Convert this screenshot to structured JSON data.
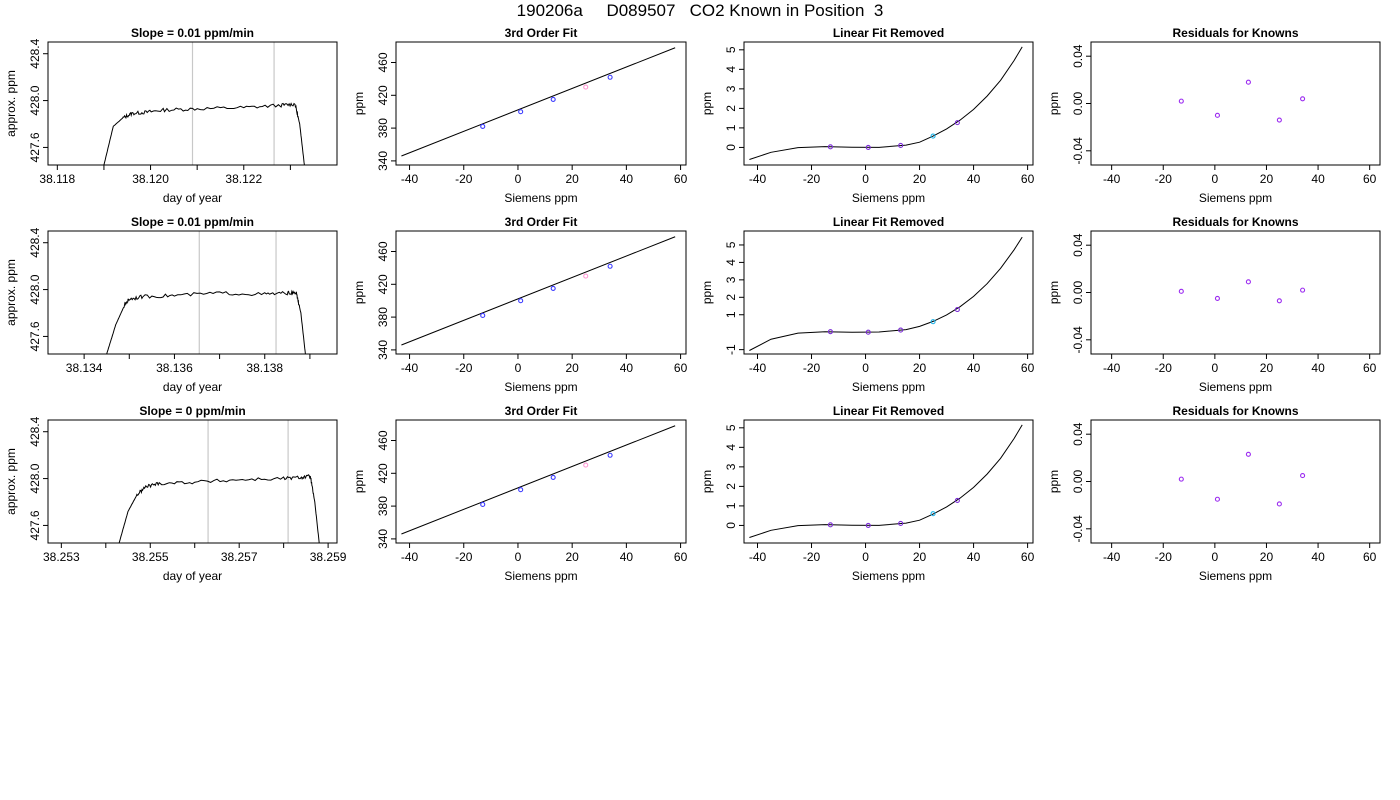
{
  "title": "190206a     D089507   CO2 Known in Position  3",
  "chart_data": [
    {
      "type": "line",
      "row": 1,
      "title": "Slope =  0.01  ppm/min",
      "xlabel": "day of year",
      "ylabel": "approx. ppm",
      "xlim": [
        38.1178,
        38.124
      ],
      "ylim": [
        427.45,
        428.5
      ],
      "xticks": [
        "38.118",
        "38.120",
        "38.122"
      ],
      "xtick_values": [
        38.118,
        38.12,
        38.122
      ],
      "xminor": [
        38.119,
        38.121,
        38.123
      ],
      "yticks": [
        "427.6",
        "428.0",
        "428.4"
      ],
      "ytick_values": [
        427.6,
        428.0,
        428.4
      ],
      "vlines": [
        38.1209,
        38.12265
      ],
      "series": [
        {
          "x": [
            38.119,
            38.1192,
            38.1194,
            38.1196,
            38.1199,
            38.1203,
            38.121,
            38.122,
            38.1228,
            38.1231,
            38.1232,
            38.1233
          ],
          "y": [
            427.45,
            427.78,
            427.85,
            427.89,
            427.9,
            427.92,
            427.93,
            427.94,
            427.96,
            427.97,
            427.8,
            427.45
          ]
        }
      ]
    },
    {
      "type": "scatter",
      "row": 1,
      "title": "3rd Order Fit",
      "xlabel": "Siemens ppm",
      "ylabel": "ppm",
      "xlim": [
        -45,
        62
      ],
      "ylim": [
        335,
        485
      ],
      "xticks": [
        "-40",
        "-20",
        "0",
        "20",
        "40",
        "60"
      ],
      "xtick_values": [
        -40,
        -20,
        0,
        20,
        40,
        60
      ],
      "yticks": [
        "340",
        "380",
        "420",
        "460"
      ],
      "ytick_values": [
        340,
        380,
        420,
        460
      ],
      "fit_line": {
        "x": [
          -43,
          58
        ],
        "y": [
          346,
          478
        ]
      },
      "points": [
        {
          "x": -13,
          "y": 382,
          "color": "#3b3bff"
        },
        {
          "x": 1,
          "y": 400,
          "color": "#3b3bff"
        },
        {
          "x": 13,
          "y": 415,
          "color": "#3b3bff"
        },
        {
          "x": 25,
          "y": 430,
          "color": "#ff9ad5"
        },
        {
          "x": 34,
          "y": 442,
          "color": "#3b3bff"
        }
      ]
    },
    {
      "type": "scatter",
      "row": 1,
      "title": "Linear Fit Removed",
      "xlabel": "Siemens ppm",
      "ylabel": "ppm",
      "xlim": [
        -45,
        62
      ],
      "ylim": [
        -0.9,
        5.4
      ],
      "xticks": [
        "-40",
        "-20",
        "0",
        "20",
        "40",
        "60"
      ],
      "xtick_values": [
        -40,
        -20,
        0,
        20,
        40,
        60
      ],
      "yticks": [
        "0",
        "1",
        "2",
        "3",
        "4",
        "5"
      ],
      "ytick_values": [
        0,
        1,
        2,
        3,
        4,
        5
      ],
      "fit_curve": {
        "x": [
          -43,
          -35,
          -25,
          -15,
          -5,
          5,
          15,
          20,
          25,
          30,
          35,
          40,
          45,
          50,
          55,
          58
        ],
        "y": [
          -0.62,
          -0.25,
          -0.01,
          0.04,
          0.01,
          0.0,
          0.12,
          0.27,
          0.58,
          0.95,
          1.4,
          1.95,
          2.63,
          3.44,
          4.45,
          5.15
        ]
      },
      "points": [
        {
          "x": -13,
          "y": 0.03,
          "color": "#7a2bd6"
        },
        {
          "x": 1,
          "y": 0.0,
          "color": "#7a2bd6"
        },
        {
          "x": 13,
          "y": 0.1,
          "color": "#7a2bd6"
        },
        {
          "x": 25,
          "y": 0.58,
          "color": "#1eb3e8"
        },
        {
          "x": 34,
          "y": 1.27,
          "color": "#7a2bd6"
        }
      ]
    },
    {
      "type": "scatter",
      "row": 1,
      "title": "Residuals for Knowns",
      "xlabel": "Siemens ppm",
      "ylabel": "ppm",
      "xlim": [
        -48,
        64
      ],
      "ylim": [
        -0.052,
        0.052
      ],
      "xticks": [
        "-40",
        "-20",
        "0",
        "20",
        "40",
        "60"
      ],
      "xtick_values": [
        -40,
        -20,
        0,
        20,
        40,
        60
      ],
      "yticks": [
        "-0.04",
        "0.00",
        "0.04"
      ],
      "ytick_values": [
        -0.04,
        0.0,
        0.04
      ],
      "points": [
        {
          "x": -13,
          "y": 0.002,
          "color": "#9b2bf0"
        },
        {
          "x": 1,
          "y": -0.01,
          "color": "#9b2bf0"
        },
        {
          "x": 13,
          "y": 0.018,
          "color": "#9b2bf0"
        },
        {
          "x": 25,
          "y": -0.014,
          "color": "#9b2bf0"
        },
        {
          "x": 34,
          "y": 0.004,
          "color": "#9b2bf0"
        }
      ]
    },
    {
      "type": "line",
      "row": 2,
      "title": "Slope =  0.01  ppm/min",
      "xlabel": "day of year",
      "ylabel": "approx. ppm",
      "xlim": [
        38.1332,
        38.1396
      ],
      "ylim": [
        427.45,
        428.5
      ],
      "xticks": [
        "38.134",
        "38.136",
        "38.138"
      ],
      "xtick_values": [
        38.134,
        38.136,
        38.138
      ],
      "xminor": [
        38.135,
        38.137,
        38.139
      ],
      "yticks": [
        "427.6",
        "428.0",
        "428.4"
      ],
      "ytick_values": [
        427.6,
        428.0,
        428.4
      ],
      "vlines": [
        38.13655,
        38.13825
      ],
      "series": [
        {
          "x": [
            38.1345,
            38.1347,
            38.1349,
            38.135,
            38.1353,
            38.136,
            38.137,
            38.138,
            38.1385,
            38.1387,
            38.1388,
            38.1389
          ],
          "y": [
            427.45,
            427.7,
            427.87,
            427.92,
            427.94,
            427.95,
            427.97,
            427.96,
            427.97,
            427.97,
            427.8,
            427.45
          ]
        }
      ]
    },
    {
      "type": "scatter",
      "row": 2,
      "title": "3rd Order Fit",
      "xlabel": "Siemens ppm",
      "ylabel": "ppm",
      "xlim": [
        -45,
        62
      ],
      "ylim": [
        335,
        485
      ],
      "xticks": [
        "-40",
        "-20",
        "0",
        "20",
        "40",
        "60"
      ],
      "xtick_values": [
        -40,
        -20,
        0,
        20,
        40,
        60
      ],
      "yticks": [
        "340",
        "380",
        "420",
        "460"
      ],
      "ytick_values": [
        340,
        380,
        420,
        460
      ],
      "fit_line": {
        "x": [
          -43,
          58
        ],
        "y": [
          346,
          478
        ]
      },
      "points": [
        {
          "x": -13,
          "y": 382,
          "color": "#3b3bff"
        },
        {
          "x": 1,
          "y": 400,
          "color": "#3b3bff"
        },
        {
          "x": 13,
          "y": 415,
          "color": "#3b3bff"
        },
        {
          "x": 25,
          "y": 430,
          "color": "#ff9ad5"
        },
        {
          "x": 34,
          "y": 442,
          "color": "#3b3bff"
        }
      ]
    },
    {
      "type": "scatter",
      "row": 2,
      "title": "Linear Fit Removed",
      "xlabel": "Siemens ppm",
      "ylabel": "ppm",
      "xlim": [
        -45,
        62
      ],
      "ylim": [
        -1.25,
        5.8
      ],
      "xticks": [
        "-40",
        "-20",
        "0",
        "20",
        "40",
        "60"
      ],
      "xtick_values": [
        -40,
        -20,
        0,
        20,
        40,
        60
      ],
      "yticks": [
        "-1",
        "1",
        "2",
        "3",
        "4",
        "5"
      ],
      "ytick_values": [
        -1,
        1,
        2,
        3,
        4,
        5
      ],
      "fit_curve": {
        "x": [
          -43,
          -35,
          -25,
          -15,
          -5,
          5,
          15,
          20,
          25,
          30,
          35,
          40,
          45,
          50,
          55,
          58
        ],
        "y": [
          -1.05,
          -0.4,
          -0.05,
          0.02,
          0.0,
          0.01,
          0.15,
          0.33,
          0.62,
          0.99,
          1.46,
          2.05,
          2.78,
          3.66,
          4.72,
          5.45
        ]
      },
      "points": [
        {
          "x": -13,
          "y": 0.03,
          "color": "#7a2bd6"
        },
        {
          "x": 1,
          "y": 0.0,
          "color": "#7a2bd6"
        },
        {
          "x": 13,
          "y": 0.12,
          "color": "#7a2bd6"
        },
        {
          "x": 25,
          "y": 0.6,
          "color": "#1eb3e8"
        },
        {
          "x": 34,
          "y": 1.3,
          "color": "#7a2bd6"
        }
      ]
    },
    {
      "type": "scatter",
      "row": 2,
      "title": "Residuals for Knowns",
      "xlabel": "Siemens ppm",
      "ylabel": "ppm",
      "xlim": [
        -48,
        64
      ],
      "ylim": [
        -0.052,
        0.052
      ],
      "xticks": [
        "-40",
        "-20",
        "0",
        "20",
        "40",
        "60"
      ],
      "xtick_values": [
        -40,
        -20,
        0,
        20,
        40,
        60
      ],
      "yticks": [
        "-0.04",
        "0.00",
        "0.04"
      ],
      "ytick_values": [
        -0.04,
        0.0,
        0.04
      ],
      "points": [
        {
          "x": -13,
          "y": 0.001,
          "color": "#9b2bf0"
        },
        {
          "x": 1,
          "y": -0.005,
          "color": "#9b2bf0"
        },
        {
          "x": 13,
          "y": 0.009,
          "color": "#9b2bf0"
        },
        {
          "x": 25,
          "y": -0.007,
          "color": "#9b2bf0"
        },
        {
          "x": 34,
          "y": 0.002,
          "color": "#9b2bf0"
        }
      ]
    },
    {
      "type": "line",
      "row": 3,
      "title": "Slope =  0  ppm/min",
      "xlabel": "day of year",
      "ylabel": "approx. ppm",
      "xlim": [
        38.2527,
        38.2592
      ],
      "ylim": [
        427.45,
        428.5
      ],
      "xticks": [
        "38.253",
        "38.255",
        "38.257",
        "38.259"
      ],
      "xtick_values": [
        38.253,
        38.255,
        38.257,
        38.259
      ],
      "xminor": [
        38.254,
        38.256,
        38.258
      ],
      "yticks": [
        "427.6",
        "428.0",
        "428.4"
      ],
      "ytick_values": [
        427.6,
        428.0,
        428.4
      ],
      "vlines": [
        38.2563,
        38.2581
      ],
      "series": [
        {
          "x": [
            38.2543,
            38.2545,
            38.2547,
            38.2549,
            38.2552,
            38.256,
            38.257,
            38.258,
            38.2584,
            38.2586,
            38.2587,
            38.2588
          ],
          "y": [
            427.45,
            427.72,
            427.86,
            427.93,
            427.96,
            427.97,
            427.99,
            428.0,
            428.01,
            428.02,
            427.8,
            427.45
          ]
        }
      ]
    },
    {
      "type": "scatter",
      "row": 3,
      "title": "3rd Order Fit",
      "xlabel": "Siemens ppm",
      "ylabel": "ppm",
      "xlim": [
        -45,
        62
      ],
      "ylim": [
        335,
        485
      ],
      "xticks": [
        "-40",
        "-20",
        "0",
        "20",
        "40",
        "60"
      ],
      "xtick_values": [
        -40,
        -20,
        0,
        20,
        40,
        60
      ],
      "yticks": [
        "340",
        "380",
        "420",
        "460"
      ],
      "ytick_values": [
        340,
        380,
        420,
        460
      ],
      "fit_line": {
        "x": [
          -43,
          58
        ],
        "y": [
          346,
          478
        ]
      },
      "points": [
        {
          "x": -13,
          "y": 382,
          "color": "#3b3bff"
        },
        {
          "x": 1,
          "y": 400,
          "color": "#3b3bff"
        },
        {
          "x": 13,
          "y": 415,
          "color": "#3b3bff"
        },
        {
          "x": 25,
          "y": 430,
          "color": "#ff9ad5"
        },
        {
          "x": 34,
          "y": 442,
          "color": "#3b3bff"
        }
      ]
    },
    {
      "type": "scatter",
      "row": 3,
      "title": "Linear Fit Removed",
      "xlabel": "Siemens ppm",
      "ylabel": "ppm",
      "xlim": [
        -45,
        62
      ],
      "ylim": [
        -0.9,
        5.4
      ],
      "xticks": [
        "-40",
        "-20",
        "0",
        "20",
        "40",
        "60"
      ],
      "xtick_values": [
        -40,
        -20,
        0,
        20,
        40,
        60
      ],
      "yticks": [
        "0",
        "1",
        "2",
        "3",
        "4",
        "5"
      ],
      "ytick_values": [
        0,
        1,
        2,
        3,
        4,
        5
      ],
      "fit_curve": {
        "x": [
          -43,
          -35,
          -25,
          -15,
          -5,
          5,
          15,
          20,
          25,
          30,
          35,
          40,
          45,
          50,
          55,
          58
        ],
        "y": [
          -0.62,
          -0.25,
          -0.01,
          0.04,
          0.01,
          0.0,
          0.12,
          0.27,
          0.58,
          0.95,
          1.4,
          1.95,
          2.63,
          3.44,
          4.45,
          5.15
        ]
      },
      "points": [
        {
          "x": -13,
          "y": 0.03,
          "color": "#7a2bd6"
        },
        {
          "x": 1,
          "y": 0.0,
          "color": "#7a2bd6"
        },
        {
          "x": 13,
          "y": 0.1,
          "color": "#7a2bd6"
        },
        {
          "x": 25,
          "y": 0.6,
          "color": "#1eb3e8"
        },
        {
          "x": 34,
          "y": 1.28,
          "color": "#7a2bd6"
        }
      ]
    },
    {
      "type": "scatter",
      "row": 3,
      "title": "Residuals for Knowns",
      "xlabel": "Siemens ppm",
      "ylabel": "ppm",
      "xlim": [
        -48,
        64
      ],
      "ylim": [
        -0.052,
        0.052
      ],
      "xticks": [
        "-40",
        "-20",
        "0",
        "20",
        "40",
        "60"
      ],
      "xtick_values": [
        -40,
        -20,
        0,
        20,
        40,
        60
      ],
      "yticks": [
        "-0.04",
        "0.00",
        "0.04"
      ],
      "ytick_values": [
        -0.04,
        0.0,
        0.04
      ],
      "points": [
        {
          "x": -13,
          "y": 0.002,
          "color": "#9b2bf0"
        },
        {
          "x": 1,
          "y": -0.015,
          "color": "#9b2bf0"
        },
        {
          "x": 13,
          "y": 0.023,
          "color": "#9b2bf0"
        },
        {
          "x": 25,
          "y": -0.019,
          "color": "#9b2bf0"
        },
        {
          "x": 34,
          "y": 0.005,
          "color": "#9b2bf0"
        }
      ]
    }
  ]
}
